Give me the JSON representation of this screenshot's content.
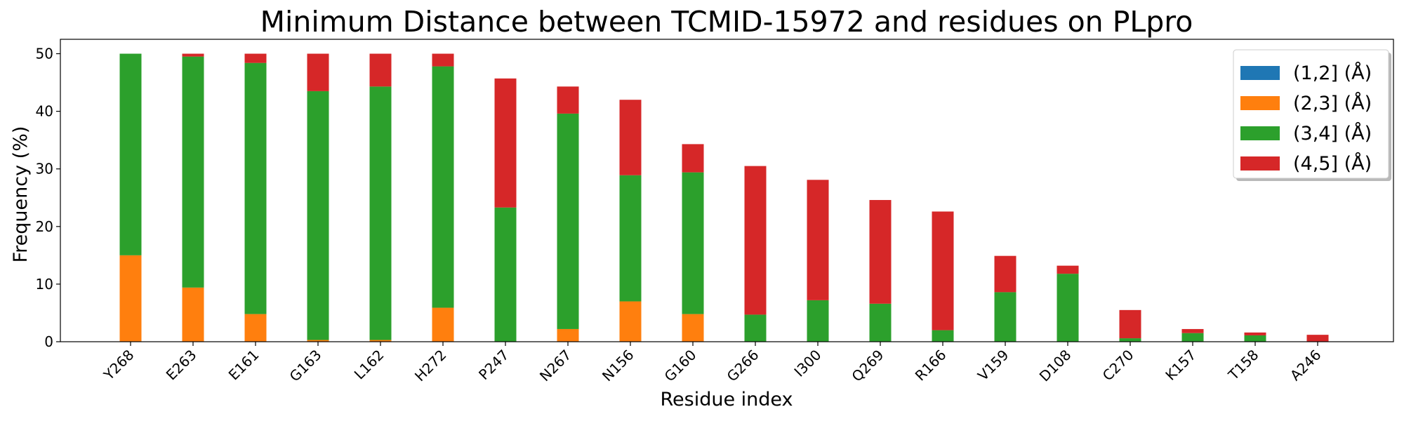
{
  "chart_data": {
    "type": "bar",
    "stacked": true,
    "title": "Minimum Distance between TCMID-15972 and residues on PLpro",
    "xlabel": "Residue index",
    "ylabel": "Frequency (%)",
    "ylim": [
      0,
      52.5
    ],
    "yticks": [
      0,
      10,
      20,
      30,
      40,
      50
    ],
    "grid": false,
    "legend_position": "top-right",
    "categories": [
      "Y268",
      "E263",
      "E161",
      "G163",
      "L162",
      "H272",
      "P247",
      "N267",
      "N156",
      "G160",
      "G266",
      "I300",
      "Q269",
      "R166",
      "V159",
      "D108",
      "C270",
      "K157",
      "T158",
      "A246"
    ],
    "series": [
      {
        "name": "(1,2] (Å)",
        "color": "#1f77b4",
        "values": [
          0,
          0,
          0,
          0,
          0,
          0,
          0,
          0,
          0,
          0,
          0,
          0,
          0,
          0,
          0,
          0,
          0,
          0,
          0,
          0
        ]
      },
      {
        "name": "(2,3] (Å)",
        "color": "#ff7f0e",
        "values": [
          15.0,
          9.4,
          4.8,
          0.3,
          0.3,
          5.9,
          0,
          2.2,
          7.0,
          4.8,
          0,
          0,
          0,
          0,
          0,
          0,
          0,
          0,
          0,
          0
        ]
      },
      {
        "name": "(3,4] (Å)",
        "color": "#2ca02c",
        "values": [
          35.0,
          40.1,
          43.6,
          43.2,
          44.0,
          41.9,
          23.3,
          37.4,
          21.9,
          24.6,
          4.7,
          7.2,
          6.6,
          2.0,
          8.6,
          11.8,
          0.6,
          1.5,
          1.1,
          0
        ]
      },
      {
        "name": "(4,5] (Å)",
        "color": "#d62728",
        "values": [
          0,
          0.5,
          1.6,
          6.5,
          5.7,
          2.2,
          22.4,
          4.7,
          13.1,
          4.9,
          25.8,
          20.9,
          18.0,
          20.6,
          6.3,
          1.4,
          4.9,
          0.7,
          0.5,
          1.2
        ]
      }
    ]
  }
}
